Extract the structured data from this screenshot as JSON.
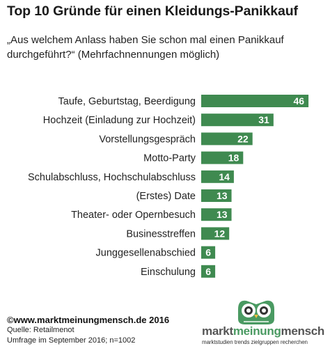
{
  "title": "Top 10 Gründe für einen Kleidungs-Panikkauf",
  "subtitle": "„Aus welchem Anlass haben Sie schon mal einen Panikkauf durchgeführt?“ (Mehrfachnennungen möglich)",
  "chart_data": {
    "type": "bar",
    "orientation": "horizontal",
    "title": "Top 10 Gründe für einen Kleidungs-Panikkauf",
    "categories": [
      "Taufe, Geburtstag, Beerdigung",
      "Hochzeit (Einladung zur Hochzeit)",
      "Vorstellungsgespräch",
      "Motto-Party",
      "Schulabschluss, Hochschulabschluss",
      "(Erstes) Date",
      "Theater- oder Opernbesuch",
      "Businesstreffen",
      "Junggesellenabschied",
      "Einschulung"
    ],
    "values": [
      46,
      31,
      22,
      18,
      14,
      13,
      13,
      12,
      6,
      6
    ],
    "data_labels": true,
    "bar_color": "#3f8a50",
    "label_color": "#ffffff",
    "grid": false,
    "legend": "none"
  },
  "source": {
    "copyright": "©www.marktmeinungmensch.de 2016",
    "line1": "Quelle: Retailmenot",
    "line2": "Umfrage im September 2016; n=1002"
  },
  "logo": {
    "part1": "markt",
    "part2": "meinung",
    "part3": "mensch",
    "tagline": "marktstudien trends zielgruppen recherchen",
    "color_gray": "#555555",
    "color_green": "#4a9a62",
    "icon": "owl-icon"
  }
}
